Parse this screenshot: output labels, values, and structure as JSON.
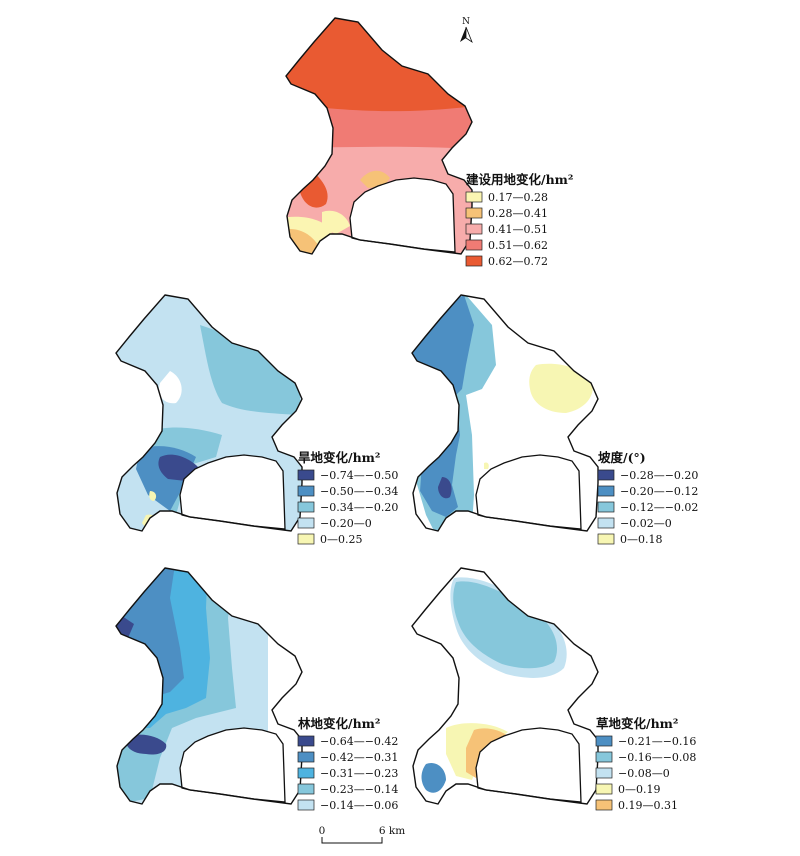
{
  "north_arrow": {
    "label": "N"
  },
  "scale_bar": {
    "start_label": "0",
    "end_label": "6 km"
  },
  "maps": [
    {
      "id": "construction",
      "legend_title": "建设用地变化/hm²",
      "classes": [
        {
          "label": "0.17—0.28",
          "color": "#fbf5b2"
        },
        {
          "label": "0.28—0.41",
          "color": "#f6c277"
        },
        {
          "label": "0.41—0.51",
          "color": "#f7acab"
        },
        {
          "label": "0.51—0.62",
          "color": "#f07b74"
        },
        {
          "label": "0.62—0.72",
          "color": "#e95a32"
        }
      ]
    },
    {
      "id": "dryland",
      "legend_title": "旱地变化/hm²",
      "classes": [
        {
          "label": "−0.74—−0.50",
          "color": "#3a4a8d"
        },
        {
          "label": "−0.50—−0.34",
          "color": "#4d8fc3"
        },
        {
          "label": "−0.34—−0.20",
          "color": "#86c7db"
        },
        {
          "label": "−0.20—0",
          "color": "#c3e2f1"
        },
        {
          "label": "0—0.25",
          "color": "#f7f6b3"
        }
      ]
    },
    {
      "id": "slope",
      "legend_title": "坡度/(°)",
      "classes": [
        {
          "label": "−0.28—−0.20",
          "color": "#3a4a8d"
        },
        {
          "label": "−0.20—−0.12",
          "color": "#4d8fc3"
        },
        {
          "label": "−0.12—−0.02",
          "color": "#86c7db"
        },
        {
          "label": "−0.02—0",
          "color": "#c3e2f1"
        },
        {
          "label": "0—0.18",
          "color": "#f7f6b3"
        }
      ]
    },
    {
      "id": "forest",
      "legend_title": "林地变化/hm²",
      "classes": [
        {
          "label": "−0.64—−0.42",
          "color": "#3a4a8d"
        },
        {
          "label": "−0.42—−0.31",
          "color": "#4d8fc3"
        },
        {
          "label": "−0.31—−0.23",
          "color": "#4eb3e0"
        },
        {
          "label": "−0.23—−0.14",
          "color": "#86c7db"
        },
        {
          "label": "−0.14—−0.06",
          "color": "#c3e2f1"
        }
      ]
    },
    {
      "id": "grassland",
      "legend_title": "草地变化/hm²",
      "classes": [
        {
          "label": "−0.21—−0.16",
          "color": "#4d8fc3"
        },
        {
          "label": "−0.16—−0.08",
          "color": "#86c7db"
        },
        {
          "label": "−0.08—0",
          "color": "#c3e2f1"
        },
        {
          "label": "0—0.19",
          "color": "#f7f6b3"
        },
        {
          "label": "0.19—0.31",
          "color": "#f6c277"
        }
      ]
    }
  ]
}
